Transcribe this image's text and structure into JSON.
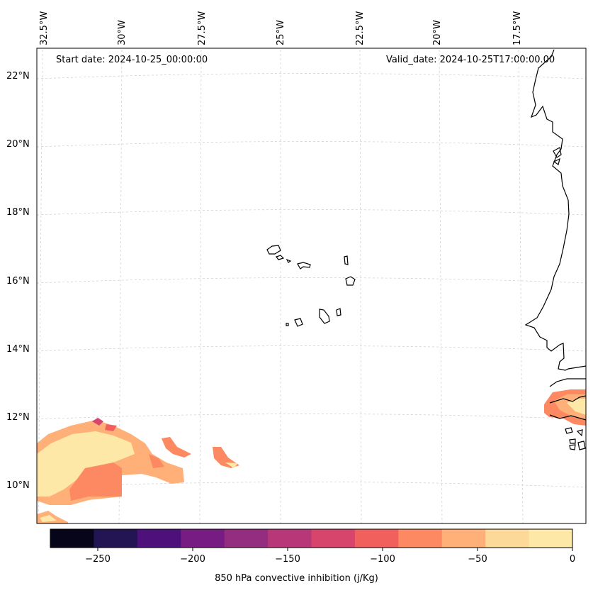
{
  "header": {
    "start_label": "Start date: 2024-10-25_00:00:00",
    "valid_label": "Valid_date: 2024-10-25T17:00:00.00"
  },
  "map": {
    "lon_labels": [
      "32.5°W",
      "30°W",
      "27.5°W",
      "25°W",
      "22.5°W",
      "20°W",
      "17.5°W"
    ],
    "lat_labels": [
      "22°N",
      "20°N",
      "18°N",
      "16°N",
      "14°N",
      "12°N",
      "10°N"
    ],
    "gridlines": true,
    "coastline_color": "#000000"
  },
  "colorbar": {
    "label": "850 hPa convective inhibition (j/Kg)",
    "ticks": [
      "−250",
      "−200",
      "−150",
      "−100",
      "−50",
      "0"
    ],
    "colors": [
      "#06051a",
      "#231554",
      "#4e117b",
      "#771c82",
      "#942c80",
      "#b73779",
      "#d8456c",
      "#f1605d",
      "#fc8961",
      "#feb078",
      "#fcd899",
      "#fde8a8"
    ]
  }
}
